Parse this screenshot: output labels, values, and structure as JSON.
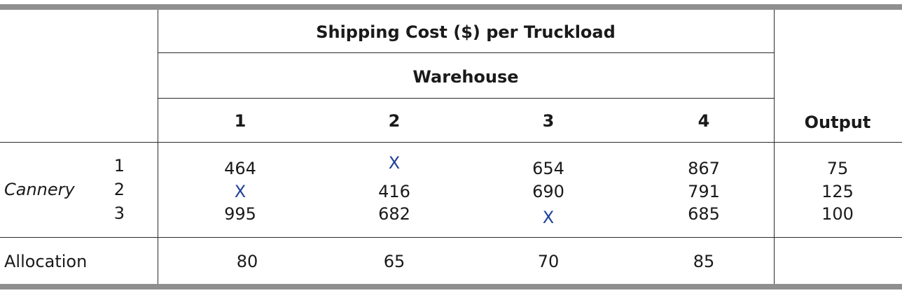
{
  "table": {
    "title": "Shipping Cost ($) per Truckload",
    "group_header": "Warehouse",
    "warehouse_columns": [
      "1",
      "2",
      "3",
      "4"
    ],
    "output_header": "Output",
    "row_group_label": "Cannery",
    "rows": [
      {
        "label": "1",
        "costs": [
          "464",
          "X",
          "654",
          "867"
        ],
        "output": "75"
      },
      {
        "label": "2",
        "costs": [
          "X",
          "416",
          "690",
          "791"
        ],
        "output": "125"
      },
      {
        "label": "3",
        "costs": [
          "995",
          "682",
          "X",
          "685"
        ],
        "output": "100"
      }
    ],
    "allocation_label": "Allocation",
    "allocation": [
      "80",
      "65",
      "70",
      "85"
    ]
  }
}
